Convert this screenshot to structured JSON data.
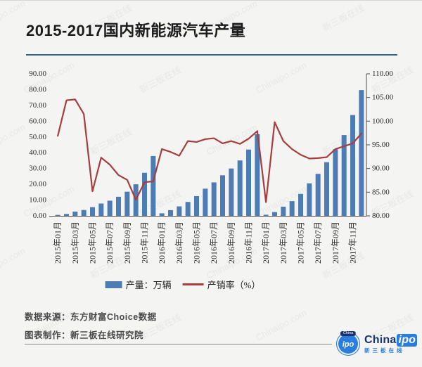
{
  "header": {
    "title": "2015-2017国内新能源汽车产量"
  },
  "chart_data": {
    "type": "combo",
    "title": "2015-2017国内新能源汽车产量",
    "categories": [
      "2015年01月",
      "2015年02月",
      "2015年03月",
      "2015年04月",
      "2015年05月",
      "2015年06月",
      "2015年07月",
      "2015年08月",
      "2015年09月",
      "2015年10月",
      "2015年11月",
      "2015年12月",
      "2016年01月",
      "2016年02月",
      "2016年03月",
      "2016年04月",
      "2016年05月",
      "2016年06月",
      "2016年07月",
      "2016年08月",
      "2016年09月",
      "2016年10月",
      "2016年11月",
      "2016年12月",
      "2017年01月",
      "2017年02月",
      "2017年03月",
      "2017年04月",
      "2017年05月",
      "2017年06月",
      "2017年07月",
      "2017年08月",
      "2017年09月",
      "2017年10月",
      "2017年11月",
      "2017年12月"
    ],
    "x_tick_every": 2,
    "series": [
      {
        "name": "产量：万辆",
        "type": "bar",
        "axis": "left",
        "color": "#4d7cb5",
        "values": [
          0.6,
          1.2,
          2.7,
          3.7,
          5.5,
          7.8,
          9.6,
          12.1,
          15.3,
          20.0,
          27.3,
          37.9,
          1.6,
          3.6,
          6.0,
          8.8,
          12.5,
          17.2,
          21.2,
          25.7,
          30.0,
          35.1,
          42.0,
          51.7,
          0.7,
          2.4,
          5.8,
          9.3,
          13.9,
          20.6,
          26.6,
          34.0,
          42.2,
          51.2,
          63.9,
          79.7
        ]
      },
      {
        "name": "产销率（%）",
        "type": "line",
        "axis": "right",
        "color": "#a63d3e",
        "values": [
          96.9,
          104.4,
          104.6,
          101.5,
          85.2,
          92.3,
          90.8,
          88.6,
          87.6,
          83.4,
          87.1,
          87.3,
          94.1,
          93.5,
          92.7,
          95.8,
          95.6,
          96.2,
          96.4,
          95.3,
          95.8,
          95.2,
          96.3,
          97.9,
          82.9,
          99.8,
          95.8,
          94.1,
          92.9,
          92.1,
          92.2,
          92.4,
          94.1,
          94.7,
          95.3,
          97.4
        ]
      }
    ],
    "left_axis": {
      "min": 0,
      "max": 90,
      "step": 10,
      "decimals": 2
    },
    "right_axis": {
      "min": 80,
      "max": 110,
      "step": 5,
      "decimals": 2
    },
    "grid": false,
    "legend_position": "bottom"
  },
  "legend": {
    "bar_label": "产量：万辆",
    "line_label": "产销率（%）"
  },
  "footer": {
    "source": "数据来源：东方财富Choice数据",
    "maker": "图表制作：新三板在线研究院"
  },
  "logo": {
    "badge_text": "ipo",
    "badge_banner": "China",
    "wordmark_primary": "China",
    "wordmark_accent": "ipo",
    "subtext": "新三板在线"
  },
  "watermark": {
    "texts": [
      "Chinaipo.com",
      "新三板在线"
    ]
  },
  "colors": {
    "background": "#f4f4f3",
    "title_underline": "#2f6496",
    "bar": "#4d7cb5",
    "line": "#a63d3e",
    "axis_text": "#2b2b2b",
    "logo_blue": "#2a7de0",
    "logo_navy": "#16356d"
  }
}
